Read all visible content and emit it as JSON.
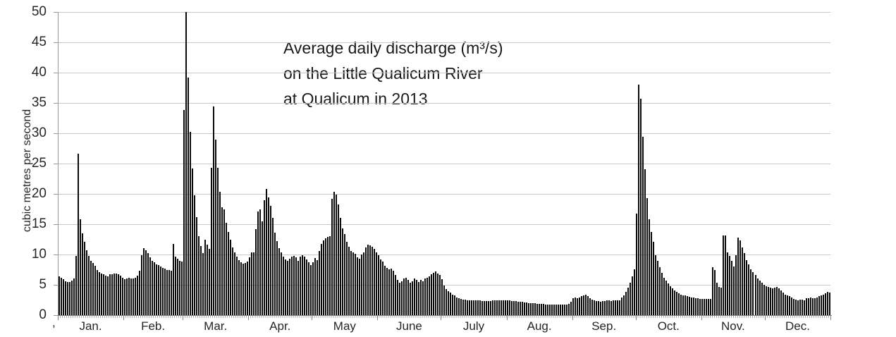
{
  "figure": {
    "title_lines": [
      "Average daily discharge (m³/s)",
      "on the Little Qualicum River",
      "at Qualicum in 2013"
    ],
    "stray_character": ","
  },
  "colors": {
    "bar": "#0a0a0a",
    "gridline": "#c8c8c8",
    "axis": "#808080",
    "text": "#262626"
  },
  "chart_data": {
    "type": "bar",
    "title": "Average daily discharge (m³/s) on the Little Qualicum River at Qualicum in 2013",
    "xlabel": "",
    "ylabel": "cubic metres per second",
    "ylim": [
      0,
      50
    ],
    "ytick_interval": 5,
    "yticks": [
      0,
      5,
      10,
      15,
      20,
      25,
      30,
      35,
      40,
      45,
      50
    ],
    "grid": "horizontal",
    "legend": "none",
    "bars_total": 365,
    "months": [
      "Jan.",
      "Feb.",
      "Mar.",
      "Apr.",
      "May",
      "June",
      "July",
      "Aug.",
      "Sep.",
      "Oct.",
      "Nov.",
      "Dec."
    ],
    "days_per_month": [
      31,
      28,
      31,
      30,
      31,
      30,
      31,
      31,
      30,
      31,
      30,
      31
    ],
    "clipping_note": "March 2 bar reaches the top of the axis (value ≥ 50, clipped)",
    "series": [
      {
        "name": "Average daily discharge",
        "unit": "m³/s",
        "values_by_month": [
          [
            6.4,
            6.2,
            5.9,
            5.6,
            5.5,
            5.5,
            5.7,
            6.1,
            9.8,
            26.6,
            15.8,
            13.5,
            12.1,
            10.7,
            9.8,
            9.0,
            8.6,
            8.1,
            7.5,
            7.1,
            6.9,
            6.7,
            6.5,
            6.4,
            6.7,
            6.8,
            6.9,
            6.9,
            6.8,
            6.5,
            6.2
          ],
          [
            5.9,
            6.0,
            6.2,
            6.1,
            6.0,
            6.2,
            6.5,
            7.3,
            9.9,
            11.0,
            10.7,
            10.2,
            9.5,
            9.0,
            8.7,
            8.4,
            8.2,
            8.0,
            7.8,
            7.7,
            7.5,
            7.4,
            7.3,
            11.7,
            9.6,
            9.3,
            9.0,
            8.8
          ],
          [
            33.8,
            50.0,
            39.2,
            30.2,
            24.2,
            19.8,
            16.2,
            13.0,
            11.4,
            10.2,
            12.4,
            11.6,
            10.9,
            24.3,
            34.4,
            29.0,
            24.3,
            20.3,
            17.8,
            17.5,
            15.2,
            13.7,
            12.4,
            11.2,
            10.4,
            9.7,
            9.1,
            8.7,
            8.5,
            8.6,
            8.8
          ],
          [
            9.5,
            10.3,
            10.4,
            14.2,
            17.1,
            17.4,
            15.5,
            18.9,
            20.8,
            19.4,
            18.0,
            16.1,
            13.6,
            12.2,
            11.1,
            10.3,
            9.6,
            9.2,
            9.0,
            9.3,
            9.6,
            9.8,
            9.5,
            9.0,
            9.7,
            9.9,
            9.6,
            9.2,
            8.7,
            8.3
          ],
          [
            8.7,
            9.4,
            9.1,
            10.6,
            11.7,
            12.3,
            12.7,
            12.9,
            13.0,
            19.2,
            20.4,
            19.9,
            18.2,
            16.0,
            14.3,
            13.4,
            12.1,
            11.3,
            10.6,
            10.3,
            10.1,
            9.5,
            9.3,
            10.0,
            10.4,
            11.2,
            11.6,
            11.5,
            11.3,
            10.9,
            10.3
          ],
          [
            9.9,
            9.2,
            8.8,
            8.1,
            7.8,
            7.6,
            7.7,
            7.3,
            6.6,
            5.8,
            5.3,
            5.6,
            6.0,
            6.2,
            5.8,
            5.4,
            5.6,
            6.1,
            5.8,
            5.5,
            5.8,
            5.6,
            6.0,
            6.2,
            6.4,
            6.8,
            7.0,
            7.2,
            6.9,
            6.6
          ],
          [
            5.9,
            4.9,
            4.3,
            4.0,
            3.7,
            3.4,
            3.2,
            2.9,
            2.8,
            2.7,
            2.6,
            2.6,
            2.5,
            2.5,
            2.5,
            2.4,
            2.4,
            2.4,
            2.4,
            2.3,
            2.3,
            2.3,
            2.3,
            2.3,
            2.4,
            2.4,
            2.4,
            2.5,
            2.5,
            2.5,
            2.4
          ],
          [
            2.4,
            2.4,
            2.3,
            2.3,
            2.3,
            2.2,
            2.2,
            2.2,
            2.1,
            2.1,
            2.0,
            2.0,
            2.0,
            2.0,
            1.9,
            1.9,
            1.9,
            1.9,
            1.8,
            1.8,
            1.8,
            1.8,
            1.8,
            1.7,
            1.7,
            1.7,
            1.7,
            1.7,
            1.8,
            1.9,
            2.2
          ],
          [
            2.8,
            2.9,
            2.8,
            2.9,
            3.1,
            3.2,
            3.4,
            3.1,
            2.8,
            2.6,
            2.4,
            2.3,
            2.3,
            2.2,
            2.3,
            2.3,
            2.4,
            2.4,
            2.3,
            2.4,
            2.5,
            2.4,
            2.5,
            2.9,
            3.3,
            3.8,
            4.5,
            5.4,
            6.4,
            7.6
          ],
          [
            16.7,
            38.0,
            35.7,
            29.4,
            24.1,
            19.3,
            15.8,
            13.7,
            12.1,
            9.9,
            9.0,
            7.9,
            7.0,
            6.2,
            5.7,
            5.2,
            4.8,
            4.4,
            4.1,
            3.8,
            3.6,
            3.4,
            3.3,
            3.2,
            3.1,
            3.0,
            2.9,
            2.9,
            2.8,
            2.8,
            2.7
          ],
          [
            2.7,
            2.7,
            2.7,
            2.7,
            2.7,
            7.9,
            7.4,
            5.3,
            4.7,
            4.5,
            13.1,
            13.1,
            10.3,
            9.8,
            9.0,
            8.0,
            9.9,
            12.8,
            12.3,
            11.2,
            10.2,
            9.1,
            8.4,
            7.6,
            7.1,
            6.6,
            6.0,
            5.7,
            5.3,
            5.0
          ],
          [
            4.8,
            4.7,
            4.5,
            4.4,
            4.5,
            4.6,
            4.4,
            4.1,
            3.7,
            3.4,
            3.2,
            3.1,
            2.9,
            2.7,
            2.6,
            2.5,
            2.6,
            2.6,
            2.5,
            2.8,
            2.8,
            2.9,
            2.8,
            2.8,
            2.9,
            3.1,
            3.3,
            3.4,
            3.6,
            3.8,
            3.7
          ]
        ]
      }
    ]
  }
}
